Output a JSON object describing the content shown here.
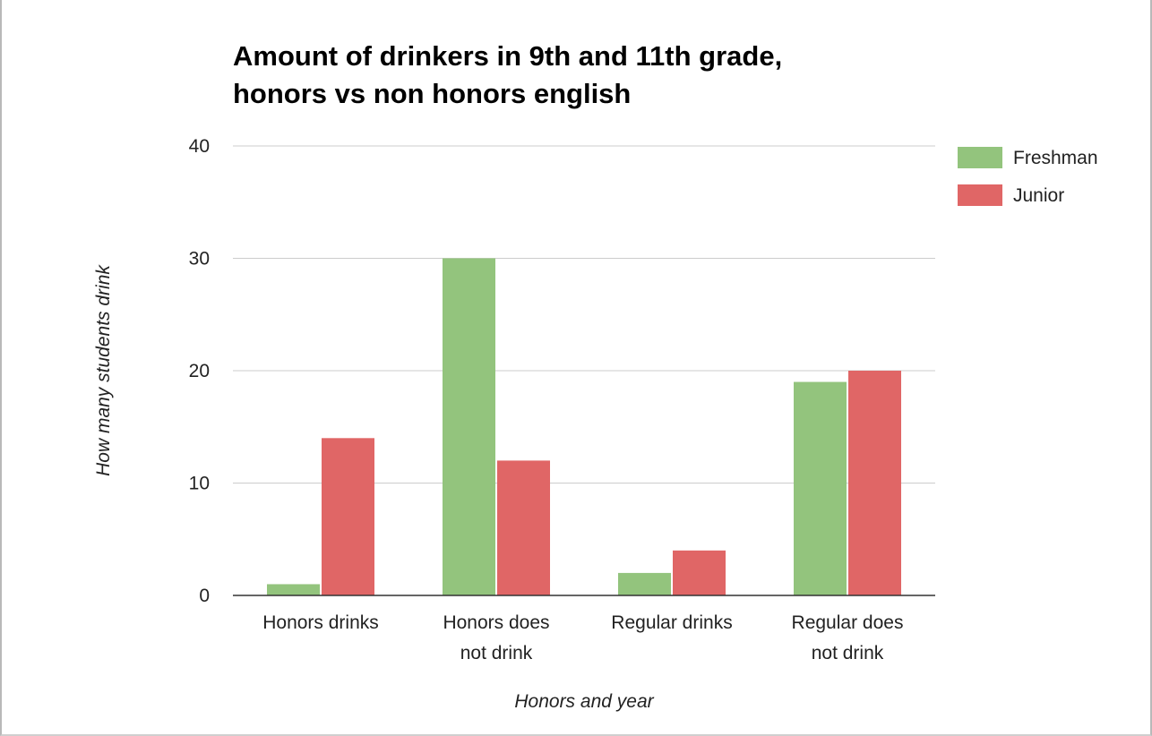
{
  "chart_data": {
    "type": "bar",
    "title_lines": [
      "Amount of drinkers in 9th and 11th grade,",
      "honors vs non honors english"
    ],
    "xlabel": "Honors and year",
    "ylabel": "How many students drink",
    "categories": [
      [
        "Honors drinks"
      ],
      [
        "Honors does",
        "not drink"
      ],
      [
        "Regular drinks"
      ],
      [
        "Regular does",
        "not drink"
      ]
    ],
    "series": [
      {
        "name": "Freshman",
        "color": "#93c47d",
        "values": [
          1,
          30,
          2,
          19
        ]
      },
      {
        "name": "Junior",
        "color": "#e06666",
        "values": [
          14,
          12,
          4,
          20
        ]
      }
    ],
    "ylim": [
      0,
      40
    ],
    "yticks": [
      0,
      10,
      20,
      30,
      40
    ],
    "grid": true,
    "legend_position": "right"
  }
}
